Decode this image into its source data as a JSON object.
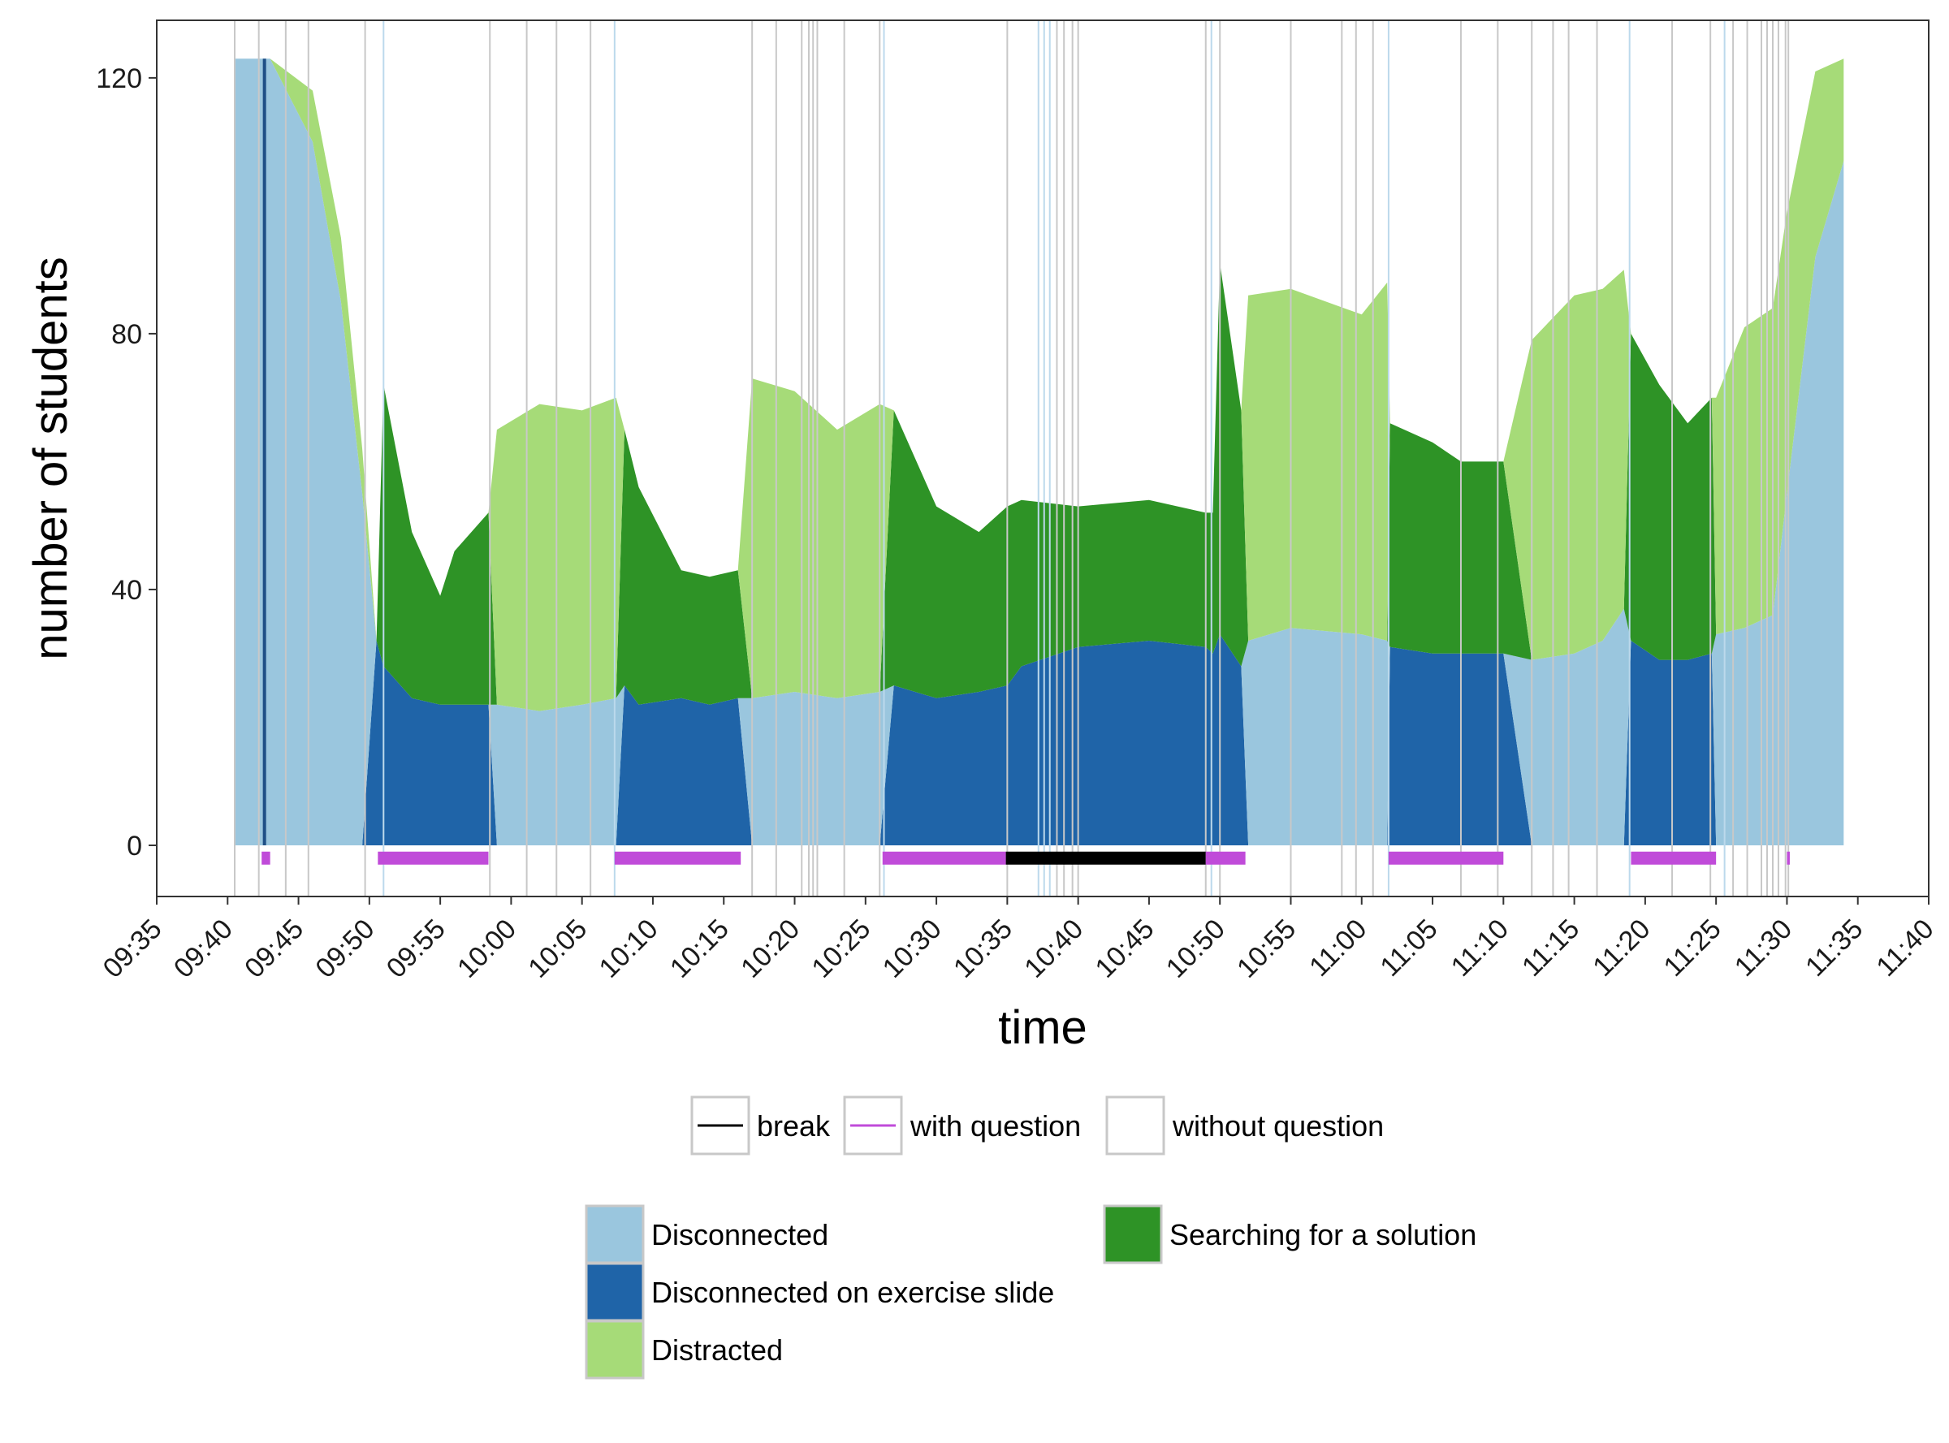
{
  "chart_data": {
    "type": "area",
    "xlabel": "time",
    "ylabel": "number of students",
    "x_ticks": [
      "09:35",
      "09:40",
      "09:45",
      "09:50",
      "09:55",
      "10:00",
      "10:05",
      "10:10",
      "10:15",
      "10:20",
      "10:25",
      "10:30",
      "10:35",
      "10:40",
      "10:45",
      "10:50",
      "10:55",
      "11:00",
      "11:05",
      "11:10",
      "11:15",
      "11:20",
      "11:25",
      "11:30",
      "11:35",
      "11:40"
    ],
    "xlim": [
      "09:35",
      "11:40"
    ],
    "y_ticks": [
      0,
      40,
      80,
      120
    ],
    "ylim": [
      -8,
      129
    ],
    "stacking": [
      "Disconnected on exercise slide",
      "Disconnected",
      "Searching for a solution",
      "Distracted"
    ],
    "x": [
      "09:40.5",
      "09:43",
      "09:46",
      "09:48",
      "09:49.5",
      "09:50.5",
      "09:51",
      "09:53",
      "09:55",
      "09:56",
      "09:58.4",
      "09:59",
      "10:02",
      "10:05",
      "10:07.4",
      "10:08",
      "10:09",
      "10:12",
      "10:14",
      "10:16",
      "10:17",
      "10:20",
      "10:23",
      "10:26",
      "10:27",
      "10:30",
      "10:33",
      "10:35",
      "10:36",
      "10:40",
      "10:45",
      "10:49",
      "10:49.5",
      "10:50",
      "10:51.5",
      "10:52",
      "10:55",
      "11:00",
      "11:01.8",
      "11:02",
      "11:05",
      "11:07",
      "11:10",
      "11:12",
      "11:15",
      "11:17",
      "11:18.5",
      "11:19",
      "11:21",
      "11:23",
      "11:24.7",
      "11:25",
      "11:27",
      "11:29",
      "11:30",
      "11:32",
      "11:34"
    ],
    "series": [
      {
        "name": "Disconnected",
        "color": "#9ac6de",
        "values": [
          123,
          123,
          110,
          85,
          55,
          0,
          0,
          0,
          0,
          0,
          0,
          22,
          21,
          22,
          23,
          0,
          0,
          0,
          0,
          0,
          23,
          24,
          23,
          24,
          0,
          0,
          0,
          0,
          0,
          0,
          0,
          0,
          0,
          0,
          0,
          32,
          34,
          33,
          32,
          0,
          0,
          0,
          0,
          29,
          30,
          32,
          37,
          0,
          0,
          0,
          0,
          33,
          34,
          36,
          55,
          92,
          107
        ]
      },
      {
        "name": "Disconnected on exercise slide",
        "color": "#1f64a8",
        "values": [
          0,
          0,
          0,
          0,
          0,
          32,
          28,
          23,
          22,
          22,
          22,
          0,
          0,
          0,
          0,
          25,
          22,
          23,
          22,
          23,
          0,
          0,
          0,
          0,
          25,
          23,
          24,
          25,
          28,
          31,
          32,
          31,
          30,
          33,
          28,
          0,
          0,
          0,
          0,
          31,
          30,
          30,
          30,
          0,
          0,
          0,
          0,
          32,
          29,
          29,
          30,
          0,
          0,
          0,
          0,
          0,
          0
        ]
      },
      {
        "name": "Searching for a solution",
        "color": "#2e9326",
        "values": [
          0,
          0,
          0,
          0,
          0,
          0,
          44,
          26,
          17,
          24,
          30,
          0,
          0,
          0,
          0,
          40,
          34,
          20,
          20,
          20,
          0,
          0,
          0,
          0,
          43,
          30,
          25,
          28,
          26,
          22,
          22,
          21,
          22,
          58,
          40,
          0,
          0,
          0,
          0,
          35,
          33,
          30,
          30,
          0,
          0,
          0,
          0,
          48,
          43,
          37,
          40,
          0,
          0,
          0,
          0,
          0,
          0
        ]
      },
      {
        "name": "Distracted",
        "color": "#a6db78",
        "values": [
          0,
          0,
          8,
          10,
          7,
          0,
          0,
          0,
          0,
          0,
          0,
          43,
          48,
          46,
          47,
          0,
          0,
          0,
          0,
          0,
          50,
          47,
          42,
          45,
          0,
          0,
          0,
          0,
          0,
          0,
          0,
          0,
          0,
          0,
          0,
          54,
          53,
          50,
          56,
          0,
          0,
          0,
          0,
          50,
          56,
          55,
          53,
          0,
          0,
          0,
          0,
          37,
          47,
          48,
          44,
          29,
          16
        ]
      }
    ],
    "vlines": {
      "blue": [
        "09:51",
        "10:07.3",
        "10:26.3",
        "10:37.2",
        "10:37.6",
        "10:38",
        "10:49.4",
        "11:01.9",
        "11:18.9",
        "11:25.6"
      ],
      "grey": [
        "09:40.5",
        "09:42.2",
        "09:44.1",
        "09:45.7",
        "09:49.7",
        "09:58.5",
        "10:01.1",
        "10:03.2",
        "10:05.6",
        "10:17",
        "10:18.7",
        "10:20.5",
        "10:21",
        "10:21.3",
        "10:21.6",
        "10:23.5",
        "10:26",
        "10:35",
        "10:38.5",
        "10:39",
        "10:39.6",
        "10:40",
        "10:49",
        "10:50",
        "10:55",
        "10:58.6",
        "10:59.6",
        "11:00.8",
        "11:07",
        "11:09.6",
        "11:12",
        "11:13.5",
        "11:14.6",
        "11:16.6",
        "11:21.9",
        "11:24.6",
        "11:26.2",
        "11:27.2",
        "11:28.2",
        "11:28.6",
        "11:29",
        "11:29.4",
        "11:29.9",
        "11:30.1"
      ],
      "dark_blue": [
        "09:42.6"
      ]
    },
    "segments": [
      {
        "type": "with question",
        "start": "09:42.4",
        "end": "09:43"
      },
      {
        "type": "with question",
        "start": "09:50.6",
        "end": "09:58.4"
      },
      {
        "type": "with question",
        "start": "10:07.3",
        "end": "10:16.2"
      },
      {
        "type": "with question",
        "start": "10:26.2",
        "end": "10:34.9"
      },
      {
        "type": "break",
        "start": "10:34.9",
        "end": "10:49"
      },
      {
        "type": "with question",
        "start": "10:49",
        "end": "10:51.8"
      },
      {
        "type": "with question",
        "start": "11:01.9",
        "end": "11:10"
      },
      {
        "type": "with question",
        "start": "11:19",
        "end": "11:25"
      },
      {
        "type": "with question",
        "start": "11:30",
        "end": "11:30.2"
      }
    ],
    "legend_position": "bottom",
    "line_legend": [
      {
        "label": "break",
        "color": "#000000"
      },
      {
        "label": "with question",
        "color": "#c04bd9"
      },
      {
        "label": "without question",
        "color": "#ffffff"
      }
    ],
    "fill_legend": [
      {
        "label": "Disconnected",
        "color": "#9ac6de"
      },
      {
        "label": "Disconnected on exercise slide",
        "color": "#1f64a8"
      },
      {
        "label": "Distracted",
        "color": "#a6db78"
      },
      {
        "label": "Searching for a solution",
        "color": "#2e9326"
      }
    ],
    "grid": false
  }
}
